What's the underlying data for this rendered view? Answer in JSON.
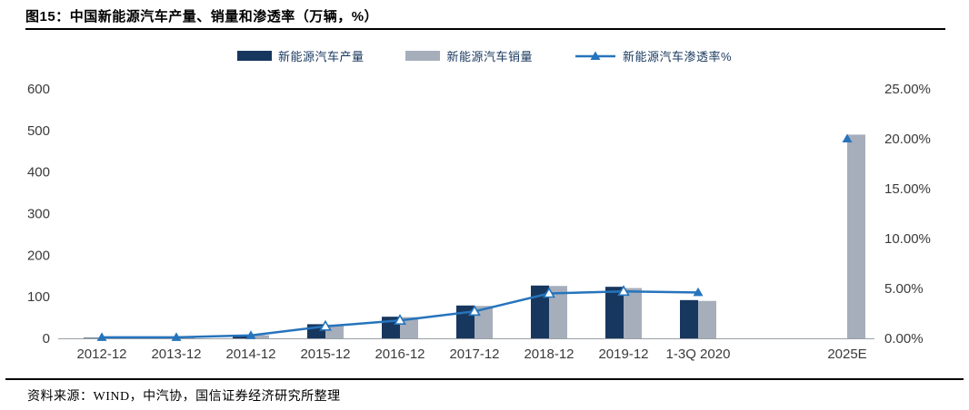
{
  "figure": {
    "label": "图15：",
    "title": "中国新能源汽车产量、销量和渗透率（万辆，%）"
  },
  "source_line": "资料来源：WIND，中汽协，国信证券经济研究所整理",
  "colors": {
    "production_bar": "#17375E",
    "sales_bar": "#A6AEBB",
    "penetration_line": "#2674BC",
    "axis_text": "#3A3A3A",
    "axis_line": "#9AA0A6",
    "legend_text": "#17375E",
    "rule": "#000000"
  },
  "legend": [
    {
      "label": "新能源汽车产量",
      "type": "bar",
      "color_key": "production_bar"
    },
    {
      "label": "新能源汽车销量",
      "type": "bar",
      "color_key": "sales_bar"
    },
    {
      "label": "新能源汽车渗透率%",
      "type": "line-triangle",
      "color_key": "penetration_line"
    }
  ],
  "chart_data": {
    "type": "bar",
    "subtype": "grouped bars + line on secondary axis",
    "title": "中国新能源汽车产量、销量和渗透率（万辆，%）",
    "categories": [
      "2012-12",
      "2013-12",
      "2014-12",
      "2015-12",
      "2016-12",
      "2017-12",
      "2018-12",
      "2019-12",
      "1-3Q 2020",
      "2025E"
    ],
    "series": [
      {
        "name": "新能源汽车产量",
        "type": "bar",
        "axis": "left",
        "values": [
          1.3,
          1.8,
          8.4,
          34,
          52,
          79,
          127,
          124,
          92,
          null
        ]
      },
      {
        "name": "新能源汽车销量",
        "type": "bar",
        "axis": "left",
        "values": [
          1.3,
          1.8,
          7.5,
          33,
          51,
          78,
          126,
          121,
          90,
          490
        ]
      },
      {
        "name": "新能源汽车渗透率%",
        "type": "line",
        "axis": "right",
        "values": [
          0.1,
          0.1,
          0.3,
          1.2,
          1.8,
          2.7,
          4.5,
          4.7,
          4.6,
          20
        ]
      }
    ],
    "left_axis": {
      "min": 0,
      "max": 600,
      "step": 100,
      "ticks": [
        "0",
        "100",
        "200",
        "300",
        "400",
        "500",
        "600"
      ]
    },
    "right_axis": {
      "min": 0,
      "max": 25,
      "step": 5,
      "ticks": [
        "0.00%",
        "5.00%",
        "10.00%",
        "15.00%",
        "20.00%",
        "25.00%"
      ]
    },
    "layout": {
      "legend_position": "top",
      "grid": "off",
      "empty_slot_before_last_category": true,
      "line_connects_through_index": 8,
      "marker_hollow_indices": [
        3,
        4,
        5,
        6,
        7
      ]
    }
  }
}
